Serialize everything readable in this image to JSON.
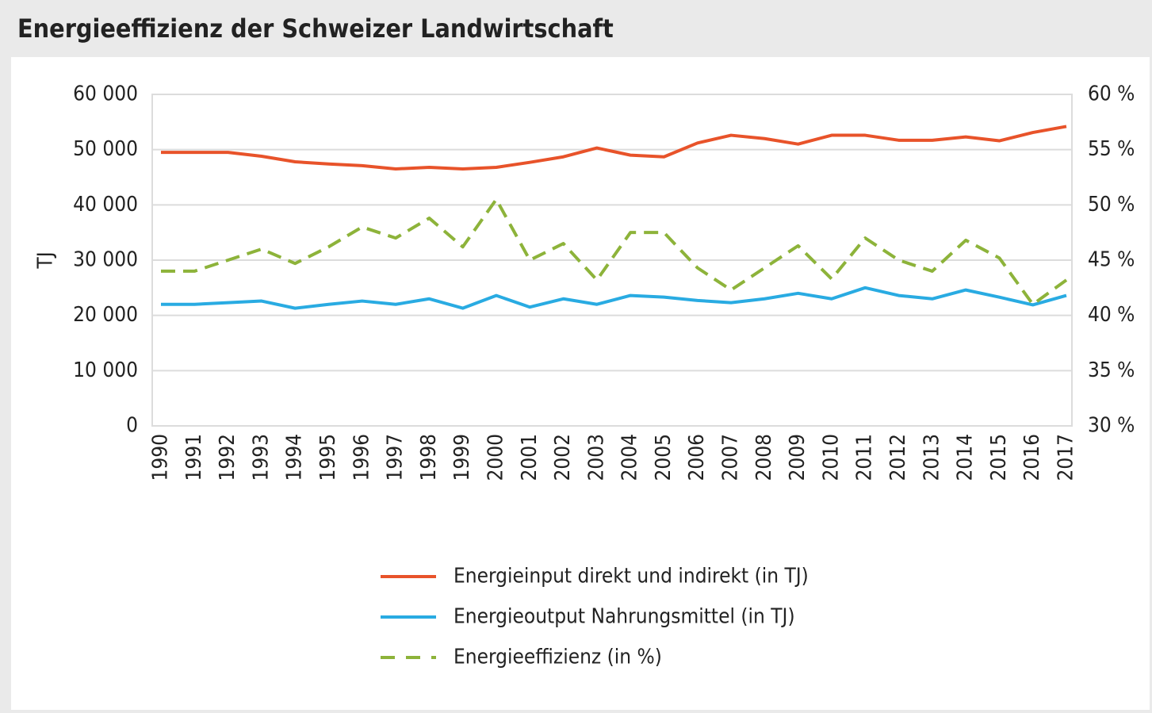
{
  "chart_data": {
    "type": "line",
    "title": "Energieeffizienz der Schweizer Landwirtschaft",
    "y_label": "TJ",
    "x": [
      1990,
      1991,
      1992,
      1993,
      1994,
      1995,
      1996,
      1997,
      1998,
      1999,
      2000,
      2001,
      2002,
      2003,
      2004,
      2005,
      2006,
      2007,
      2008,
      2009,
      2010,
      2011,
      2012,
      2013,
      2014,
      2015,
      2016,
      2017
    ],
    "xlim": [
      1990,
      2017
    ],
    "ylim": [
      0,
      60000
    ],
    "yticks": [
      0,
      {
        "value": 10000,
        "label": "10 000"
      },
      {
        "value": 20000,
        "label": "20 000"
      },
      {
        "value": 30000,
        "label": "30 000"
      },
      {
        "value": 40000,
        "label": "40 000"
      },
      {
        "value": 50000,
        "label": "50 000"
      },
      {
        "value": 60000,
        "label": "60 000"
      }
    ],
    "y2lim": [
      30,
      60
    ],
    "y2ticks": [
      {
        "value": 30,
        "label": "30 %"
      },
      {
        "value": 35,
        "label": "35 %"
      },
      {
        "value": 40,
        "label": "40 %"
      },
      {
        "value": 45,
        "label": "45 %"
      },
      {
        "value": 50,
        "label": "50 %"
      },
      {
        "value": 55,
        "label": "55 %"
      },
      {
        "value": 60,
        "label": "60 %"
      }
    ],
    "grid": true,
    "legend": "bottom",
    "series": [
      {
        "name": "Energieinput direkt und indirekt (in TJ)",
        "color": "#e8532a",
        "dashed": false,
        "values": [
          49500,
          49500,
          49500,
          48800,
          47800,
          47400,
          47100,
          46500,
          46800,
          46500,
          46800,
          47700,
          48700,
          50300,
          49000,
          48700,
          51200,
          52600,
          52000,
          51000,
          52600,
          52600,
          51700,
          51700,
          52300,
          51600,
          53100,
          54200
        ]
      },
      {
        "name": "Energieoutput Nahrungsmittel (in TJ)",
        "color": "#29abe2",
        "dashed": false,
        "values": [
          22000,
          22000,
          22300,
          22600,
          21300,
          22000,
          22600,
          22000,
          23000,
          21300,
          23600,
          21500,
          23000,
          22000,
          23600,
          23300,
          22700,
          22300,
          23000,
          24000,
          23000,
          25000,
          23600,
          23000,
          24600,
          23300,
          21900,
          23600
        ]
      },
      {
        "name": "Energieeffizienz (in %)",
        "color": "#8db33a",
        "dashed": true,
        "axis": "y2",
        "values": [
          44,
          44,
          45,
          46,
          44.7,
          46.2,
          48,
          47,
          48.8,
          46.2,
          50.5,
          45,
          46.5,
          43.2,
          47.5,
          47.5,
          44.3,
          42.3,
          44.3,
          46.3,
          43.3,
          47,
          45,
          44,
          46.8,
          45.2,
          41,
          43.2
        ]
      }
    ]
  }
}
